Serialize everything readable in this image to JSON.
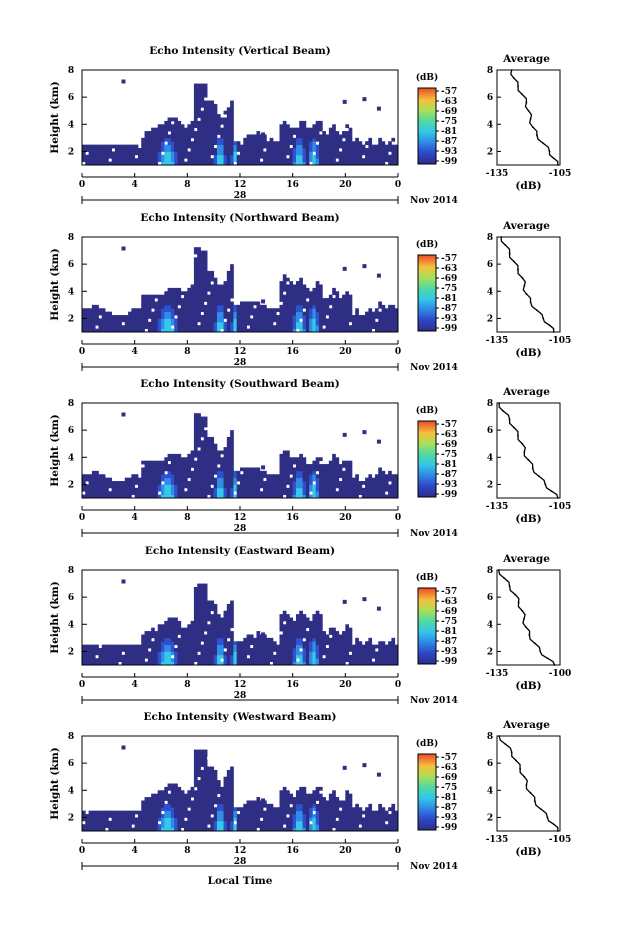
{
  "chart_data": [
    {
      "type": "heatmap",
      "title": "Echo Intensity (Vertical Beam)",
      "ylabel": "Height (km)",
      "xlabel": "",
      "x_ticks": [
        "0",
        "4",
        "8",
        "12",
        "16",
        "20",
        "0"
      ],
      "y_ticks": [
        "2",
        "4",
        "6",
        "8"
      ],
      "date_day": "28",
      "date_label": "Nov 2014",
      "colorbar_unit": "(dB)",
      "colorbar_ticks": [
        "-57",
        "-63",
        "-69",
        "-75",
        "-81",
        "-87",
        "-93",
        "-99"
      ],
      "profile": {
        "title": "Average",
        "xlabel": "(dB)",
        "x_ticks": [
          "-135",
          "-105"
        ],
        "y_ticks": [
          "2",
          "4",
          "6",
          "8"
        ],
        "points": [
          [
            -128,
            8.0
          ],
          [
            -127,
            7.4
          ],
          [
            -125,
            6.8
          ],
          [
            -123,
            6.2
          ],
          [
            -121,
            5.6
          ],
          [
            -120,
            5.0
          ],
          [
            -119,
            4.4
          ],
          [
            -118,
            3.8
          ],
          [
            -116,
            3.2
          ],
          [
            -113,
            2.6
          ],
          [
            -110,
            2.0
          ],
          [
            -108,
            1.5
          ],
          [
            -106,
            1.0
          ]
        ]
      }
    },
    {
      "type": "heatmap",
      "title": "Echo Intensity (Northward Beam)",
      "ylabel": "Height (km)",
      "xlabel": "",
      "x_ticks": [
        "0",
        "4",
        "8",
        "12",
        "16",
        "20",
        "0"
      ],
      "y_ticks": [
        "2",
        "4",
        "6",
        "8"
      ],
      "date_day": "28",
      "date_label": "Nov 2014",
      "colorbar_unit": "(dB)",
      "colorbar_ticks": [
        "-57",
        "-63",
        "-69",
        "-75",
        "-81",
        "-87",
        "-93",
        "-99"
      ],
      "profile": {
        "title": "Average",
        "xlabel": "(dB)",
        "x_ticks": [
          "-135",
          "-105"
        ],
        "y_ticks": [
          "2",
          "4",
          "6",
          "8"
        ],
        "points": [
          [
            -133,
            8.0
          ],
          [
            -131,
            7.4
          ],
          [
            -129,
            6.8
          ],
          [
            -127,
            6.2
          ],
          [
            -125,
            5.6
          ],
          [
            -123,
            5.0
          ],
          [
            -122,
            4.4
          ],
          [
            -121,
            3.8
          ],
          [
            -119,
            3.2
          ],
          [
            -116,
            2.6
          ],
          [
            -113,
            2.0
          ],
          [
            -110,
            1.5
          ],
          [
            -108,
            1.0
          ]
        ]
      }
    },
    {
      "type": "heatmap",
      "title": "Echo Intensity (Southward Beam)",
      "ylabel": "Height (km)",
      "xlabel": "",
      "x_ticks": [
        "0",
        "4",
        "8",
        "12",
        "16",
        "20",
        "0"
      ],
      "y_ticks": [
        "2",
        "4",
        "6",
        "8"
      ],
      "date_day": "28",
      "date_label": "Nov 2014",
      "colorbar_unit": "(dB)",
      "colorbar_ticks": [
        "-57",
        "-63",
        "-69",
        "-75",
        "-81",
        "-87",
        "-93",
        "-99"
      ],
      "profile": {
        "title": "Average",
        "xlabel": "(dB)",
        "x_ticks": [
          "-135",
          "-105"
        ],
        "y_ticks": [
          "2",
          "4",
          "6",
          "8"
        ],
        "points": [
          [
            -134,
            8.0
          ],
          [
            -132,
            7.4
          ],
          [
            -129,
            6.8
          ],
          [
            -127,
            6.2
          ],
          [
            -125,
            5.6
          ],
          [
            -123,
            5.0
          ],
          [
            -122,
            4.4
          ],
          [
            -120,
            3.8
          ],
          [
            -118,
            3.2
          ],
          [
            -115,
            2.6
          ],
          [
            -112,
            2.0
          ],
          [
            -109,
            1.5
          ],
          [
            -106,
            1.0
          ]
        ]
      }
    },
    {
      "type": "heatmap",
      "title": "Echo Intensity (Eastward Beam)",
      "ylabel": "Height (km)",
      "xlabel": "",
      "x_ticks": [
        "0",
        "4",
        "8",
        "12",
        "16",
        "20",
        "0"
      ],
      "y_ticks": [
        "2",
        "4",
        "6",
        "8"
      ],
      "date_day": "28",
      "date_label": "Nov 2014",
      "colorbar_unit": "(dB)",
      "colorbar_ticks": [
        "-57",
        "-63",
        "-69",
        "-75",
        "-81",
        "-87",
        "-93",
        "-99"
      ],
      "profile": {
        "title": "Average",
        "xlabel": "(dB)",
        "x_ticks": [
          "-135",
          "-100"
        ],
        "y_ticks": [
          "2",
          "4",
          "6",
          "8"
        ],
        "points": [
          [
            -134,
            8.0
          ],
          [
            -131,
            7.4
          ],
          [
            -128,
            6.8
          ],
          [
            -125,
            6.2
          ],
          [
            -123,
            5.6
          ],
          [
            -121,
            5.0
          ],
          [
            -120,
            4.4
          ],
          [
            -119,
            3.8
          ],
          [
            -117,
            3.2
          ],
          [
            -114,
            2.6
          ],
          [
            -111,
            2.0
          ],
          [
            -107,
            1.5
          ],
          [
            -103,
            1.0
          ]
        ]
      }
    },
    {
      "type": "heatmap",
      "title": "Echo Intensity (Westward Beam)",
      "ylabel": "Height (km)",
      "xlabel": "Local Time",
      "x_ticks": [
        "0",
        "4",
        "8",
        "12",
        "16",
        "20",
        "0"
      ],
      "y_ticks": [
        "2",
        "4",
        "6",
        "8"
      ],
      "date_day": "28",
      "date_label": "Nov 2014",
      "colorbar_unit": "(dB)",
      "colorbar_ticks": [
        "-57",
        "-63",
        "-69",
        "-75",
        "-81",
        "-87",
        "-93",
        "-99"
      ],
      "profile": {
        "title": "Average",
        "xlabel": "(dB)",
        "x_ticks": [
          "-135",
          "-105"
        ],
        "y_ticks": [
          "2",
          "4",
          "6",
          "8"
        ],
        "points": [
          [
            -134,
            8.0
          ],
          [
            -131,
            7.4
          ],
          [
            -128,
            6.8
          ],
          [
            -126,
            6.2
          ],
          [
            -124,
            5.6
          ],
          [
            -122,
            5.0
          ],
          [
            -121,
            4.4
          ],
          [
            -119,
            3.8
          ],
          [
            -117,
            3.2
          ],
          [
            -114,
            2.6
          ],
          [
            -111,
            2.0
          ],
          [
            -108,
            1.5
          ],
          [
            -106,
            1.0
          ]
        ]
      }
    }
  ]
}
